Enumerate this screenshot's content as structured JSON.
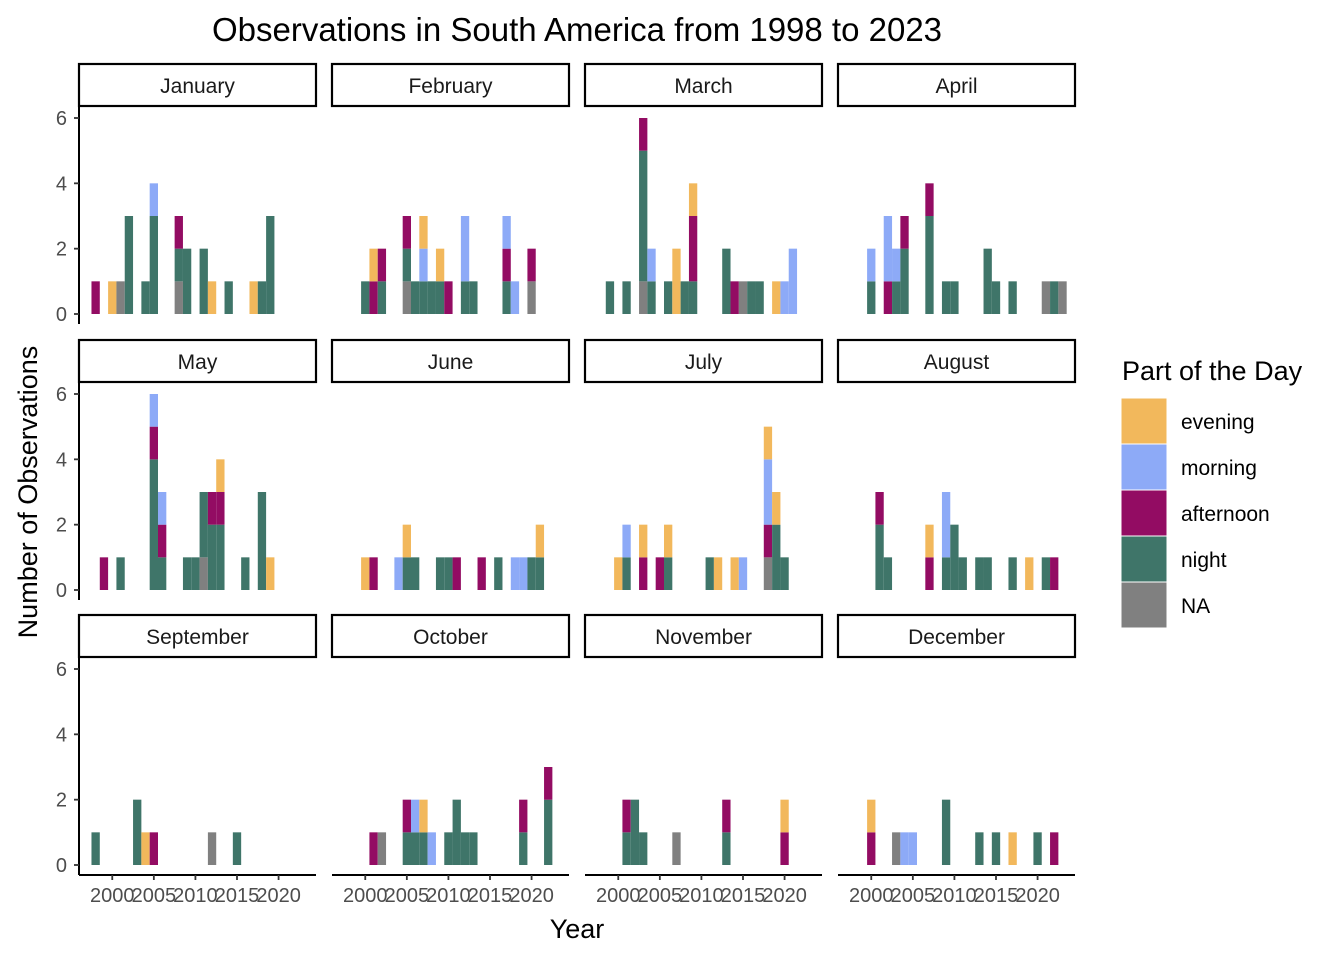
{
  "chart_data": {
    "type": "bar",
    "title": "Observations in South America from 1998 to 2023",
    "xlabel": "Year",
    "ylabel": "Number of Observations",
    "xlim": [
      1996,
      2024.5
    ],
    "ylim": [
      0,
      6.3
    ],
    "x_ticks": [
      2000,
      2005,
      2010,
      2015,
      2020
    ],
    "y_ticks": [
      0,
      2,
      4,
      6
    ],
    "legend": {
      "title": "Part of the Day",
      "placement": "right",
      "items": [
        {
          "key": "evening",
          "label": "evening",
          "color": "#F2B85C"
        },
        {
          "key": "morning",
          "label": "morning",
          "color": "#8DAAF7"
        },
        {
          "key": "afternoon",
          "label": "afternoon",
          "color": "#930C63"
        },
        {
          "key": "night",
          "label": "night",
          "color": "#3F7569"
        },
        {
          "key": "NA",
          "label": "NA",
          "color": "#808080"
        }
      ]
    },
    "stack_order": [
      "NA",
      "night",
      "afternoon",
      "morning",
      "evening"
    ],
    "panels": [
      {
        "month": "January",
        "bars": [
          {
            "year": 1998,
            "afternoon": 1
          },
          {
            "year": 2000,
            "evening": 1
          },
          {
            "year": 2001,
            "NA": 1
          },
          {
            "year": 2002,
            "night": 3
          },
          {
            "year": 2004,
            "night": 1
          },
          {
            "year": 2005,
            "night": 3,
            "morning": 1
          },
          {
            "year": 2008,
            "NA": 1,
            "night": 1,
            "afternoon": 1
          },
          {
            "year": 2009,
            "night": 2
          },
          {
            "year": 2011,
            "night": 2
          },
          {
            "year": 2012,
            "evening": 1
          },
          {
            "year": 2014,
            "night": 1
          },
          {
            "year": 2017,
            "evening": 1
          },
          {
            "year": 2018,
            "night": 1
          },
          {
            "year": 2019,
            "night": 3
          }
        ]
      },
      {
        "month": "February",
        "bars": [
          {
            "year": 2000,
            "night": 1
          },
          {
            "year": 2001,
            "afternoon": 1,
            "evening": 1
          },
          {
            "year": 2002,
            "night": 1,
            "afternoon": 1
          },
          {
            "year": 2005,
            "NA": 1,
            "night": 1,
            "afternoon": 1
          },
          {
            "year": 2006,
            "night": 1
          },
          {
            "year": 2007,
            "night": 1,
            "morning": 1,
            "evening": 1
          },
          {
            "year": 2008,
            "night": 1
          },
          {
            "year": 2009,
            "night": 1,
            "evening": 1
          },
          {
            "year": 2010,
            "afternoon": 1
          },
          {
            "year": 2012,
            "night": 1,
            "morning": 2
          },
          {
            "year": 2013,
            "night": 1
          },
          {
            "year": 2017,
            "night": 1,
            "afternoon": 1,
            "morning": 1
          },
          {
            "year": 2018,
            "morning": 1
          },
          {
            "year": 2020,
            "NA": 1,
            "afternoon": 1
          }
        ]
      },
      {
        "month": "March",
        "bars": [
          {
            "year": 1999,
            "night": 1
          },
          {
            "year": 2001,
            "night": 1
          },
          {
            "year": 2003,
            "NA": 1,
            "night": 4,
            "afternoon": 1
          },
          {
            "year": 2004,
            "night": 1,
            "morning": 1
          },
          {
            "year": 2006,
            "night": 1
          },
          {
            "year": 2007,
            "evening": 2
          },
          {
            "year": 2008,
            "night": 1
          },
          {
            "year": 2009,
            "night": 1,
            "afternoon": 2,
            "evening": 1
          },
          {
            "year": 2013,
            "night": 2
          },
          {
            "year": 2014,
            "afternoon": 1
          },
          {
            "year": 2015,
            "NA": 1
          },
          {
            "year": 2016,
            "night": 1
          },
          {
            "year": 2017,
            "night": 1
          },
          {
            "year": 2019,
            "evening": 1
          },
          {
            "year": 2020,
            "morning": 1
          },
          {
            "year": 2021,
            "morning": 2
          }
        ]
      },
      {
        "month": "April",
        "bars": [
          {
            "year": 2000,
            "night": 1,
            "morning": 1
          },
          {
            "year": 2002,
            "afternoon": 1,
            "morning": 2
          },
          {
            "year": 2003,
            "night": 1,
            "morning": 1
          },
          {
            "year": 2004,
            "night": 2,
            "afternoon": 1
          },
          {
            "year": 2007,
            "night": 3,
            "afternoon": 1
          },
          {
            "year": 2009,
            "night": 1
          },
          {
            "year": 2010,
            "night": 1
          },
          {
            "year": 2014,
            "night": 2
          },
          {
            "year": 2015,
            "night": 1
          },
          {
            "year": 2017,
            "night": 1
          },
          {
            "year": 2021,
            "NA": 1
          },
          {
            "year": 2022,
            "night": 1
          },
          {
            "year": 2023,
            "NA": 1
          }
        ]
      },
      {
        "month": "May",
        "bars": [
          {
            "year": 1999,
            "afternoon": 1
          },
          {
            "year": 2001,
            "night": 1
          },
          {
            "year": 2005,
            "night": 4,
            "afternoon": 1,
            "morning": 1
          },
          {
            "year": 2006,
            "night": 1,
            "afternoon": 1,
            "morning": 1
          },
          {
            "year": 2009,
            "night": 1
          },
          {
            "year": 2010,
            "night": 1
          },
          {
            "year": 2011,
            "NA": 1,
            "night": 2
          },
          {
            "year": 2012,
            "night": 2,
            "afternoon": 1
          },
          {
            "year": 2013,
            "night": 2,
            "afternoon": 1,
            "evening": 1
          },
          {
            "year": 2016,
            "night": 1
          },
          {
            "year": 2018,
            "night": 3
          },
          {
            "year": 2019,
            "evening": 1
          }
        ]
      },
      {
        "month": "June",
        "bars": [
          {
            "year": 2000,
            "evening": 1
          },
          {
            "year": 2001,
            "afternoon": 1
          },
          {
            "year": 2004,
            "morning": 1
          },
          {
            "year": 2005,
            "night": 1,
            "evening": 1
          },
          {
            "year": 2006,
            "night": 1
          },
          {
            "year": 2009,
            "night": 1
          },
          {
            "year": 2010,
            "night": 1
          },
          {
            "year": 2011,
            "afternoon": 1
          },
          {
            "year": 2014,
            "afternoon": 1
          },
          {
            "year": 2016,
            "night": 1
          },
          {
            "year": 2018,
            "morning": 1
          },
          {
            "year": 2019,
            "morning": 1
          },
          {
            "year": 2020,
            "night": 1
          },
          {
            "year": 2021,
            "night": 1,
            "evening": 1
          }
        ]
      },
      {
        "month": "July",
        "bars": [
          {
            "year": 2000,
            "evening": 1
          },
          {
            "year": 2001,
            "night": 1,
            "morning": 1
          },
          {
            "year": 2003,
            "afternoon": 1,
            "evening": 1
          },
          {
            "year": 2005,
            "afternoon": 1
          },
          {
            "year": 2006,
            "night": 1,
            "evening": 1
          },
          {
            "year": 2011,
            "night": 1
          },
          {
            "year": 2012,
            "evening": 1
          },
          {
            "year": 2014,
            "evening": 1
          },
          {
            "year": 2015,
            "morning": 1
          },
          {
            "year": 2018,
            "NA": 1,
            "afternoon": 1,
            "morning": 2,
            "evening": 1
          },
          {
            "year": 2019,
            "night": 2,
            "evening": 1
          },
          {
            "year": 2020,
            "night": 1
          }
        ]
      },
      {
        "month": "August",
        "bars": [
          {
            "year": 2001,
            "night": 2,
            "afternoon": 1
          },
          {
            "year": 2002,
            "night": 1
          },
          {
            "year": 2007,
            "afternoon": 1,
            "evening": 1
          },
          {
            "year": 2009,
            "night": 1,
            "morning": 2
          },
          {
            "year": 2010,
            "night": 2
          },
          {
            "year": 2011,
            "night": 1
          },
          {
            "year": 2013,
            "night": 1
          },
          {
            "year": 2014,
            "night": 1
          },
          {
            "year": 2017,
            "night": 1
          },
          {
            "year": 2019,
            "evening": 1
          },
          {
            "year": 2021,
            "night": 1
          },
          {
            "year": 2022,
            "afternoon": 1
          }
        ]
      },
      {
        "month": "September",
        "bars": [
          {
            "year": 1998,
            "night": 1
          },
          {
            "year": 2003,
            "night": 2
          },
          {
            "year": 2004,
            "evening": 1
          },
          {
            "year": 2005,
            "afternoon": 1
          },
          {
            "year": 2012,
            "NA": 1
          },
          {
            "year": 2015,
            "night": 1
          }
        ]
      },
      {
        "month": "October",
        "bars": [
          {
            "year": 2001,
            "afternoon": 1
          },
          {
            "year": 2002,
            "NA": 1
          },
          {
            "year": 2005,
            "night": 1,
            "afternoon": 1
          },
          {
            "year": 2006,
            "night": 1,
            "morning": 1
          },
          {
            "year": 2007,
            "night": 1,
            "evening": 1
          },
          {
            "year": 2008,
            "morning": 1
          },
          {
            "year": 2010,
            "night": 1
          },
          {
            "year": 2011,
            "night": 2
          },
          {
            "year": 2012,
            "night": 1
          },
          {
            "year": 2013,
            "night": 1
          },
          {
            "year": 2019,
            "night": 1,
            "afternoon": 1
          },
          {
            "year": 2022,
            "night": 2,
            "afternoon": 1
          }
        ]
      },
      {
        "month": "November",
        "bars": [
          {
            "year": 2001,
            "night": 1,
            "afternoon": 1
          },
          {
            "year": 2002,
            "night": 2
          },
          {
            "year": 2003,
            "night": 1
          },
          {
            "year": 2007,
            "NA": 1
          },
          {
            "year": 2013,
            "night": 1,
            "afternoon": 1
          },
          {
            "year": 2020,
            "afternoon": 1,
            "evening": 1
          }
        ]
      },
      {
        "month": "December",
        "bars": [
          {
            "year": 2000,
            "afternoon": 1,
            "evening": 1
          },
          {
            "year": 2003,
            "NA": 1
          },
          {
            "year": 2004,
            "morning": 1
          },
          {
            "year": 2005,
            "morning": 1
          },
          {
            "year": 2009,
            "night": 2
          },
          {
            "year": 2013,
            "night": 1
          },
          {
            "year": 2015,
            "night": 1
          },
          {
            "year": 2017,
            "evening": 1
          },
          {
            "year": 2020,
            "night": 1
          },
          {
            "year": 2022,
            "afternoon": 1
          }
        ]
      }
    ]
  }
}
